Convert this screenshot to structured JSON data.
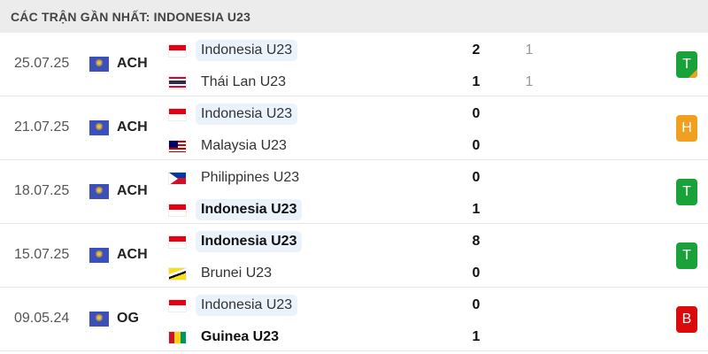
{
  "header": {
    "title": "CÁC TRẬN GẦN NHẤT: INDONESIA U23"
  },
  "colors": {
    "win": "#1aa23a",
    "draw": "#f0a01e",
    "loss": "#dc0b0b",
    "highlight": "#eaf3fc",
    "header_bg": "#ececec"
  },
  "matches": [
    {
      "date": "25.07.25",
      "competition": "ACH",
      "competition_icon": "world-map-icon",
      "home": {
        "name": "Indonesia U23",
        "flag": "indonesia",
        "score": "2",
        "pen": "1",
        "highlight": true,
        "bold": false
      },
      "away": {
        "name": "Thái Lan U23",
        "flag": "thailand",
        "score": "1",
        "pen": "1",
        "highlight": false,
        "bold": false
      },
      "result": "T",
      "result_type": "win-penalty"
    },
    {
      "date": "21.07.25",
      "competition": "ACH",
      "competition_icon": "world-map-icon",
      "home": {
        "name": "Indonesia U23",
        "flag": "indonesia",
        "score": "0",
        "highlight": true,
        "bold": false
      },
      "away": {
        "name": "Malaysia U23",
        "flag": "malaysia",
        "score": "0",
        "highlight": false,
        "bold": false
      },
      "result": "H",
      "result_type": "draw"
    },
    {
      "date": "18.07.25",
      "competition": "ACH",
      "competition_icon": "world-map-icon",
      "home": {
        "name": "Philippines U23",
        "flag": "philippines",
        "score": "0",
        "highlight": false,
        "bold": false
      },
      "away": {
        "name": "Indonesia U23",
        "flag": "indonesia",
        "score": "1",
        "highlight": true,
        "bold": true
      },
      "result": "T",
      "result_type": "win"
    },
    {
      "date": "15.07.25",
      "competition": "ACH",
      "competition_icon": "world-map-icon",
      "home": {
        "name": "Indonesia U23",
        "flag": "indonesia",
        "score": "8",
        "highlight": true,
        "bold": true
      },
      "away": {
        "name": "Brunei U23",
        "flag": "brunei",
        "score": "0",
        "highlight": false,
        "bold": false
      },
      "result": "T",
      "result_type": "win"
    },
    {
      "date": "09.05.24",
      "competition": "OG",
      "competition_icon": "world-map-icon",
      "home": {
        "name": "Indonesia U23",
        "flag": "indonesia",
        "score": "0",
        "highlight": true,
        "bold": false
      },
      "away": {
        "name": "Guinea U23",
        "flag": "guinea",
        "score": "1",
        "highlight": false,
        "bold": true
      },
      "result": "B",
      "result_type": "loss"
    }
  ]
}
